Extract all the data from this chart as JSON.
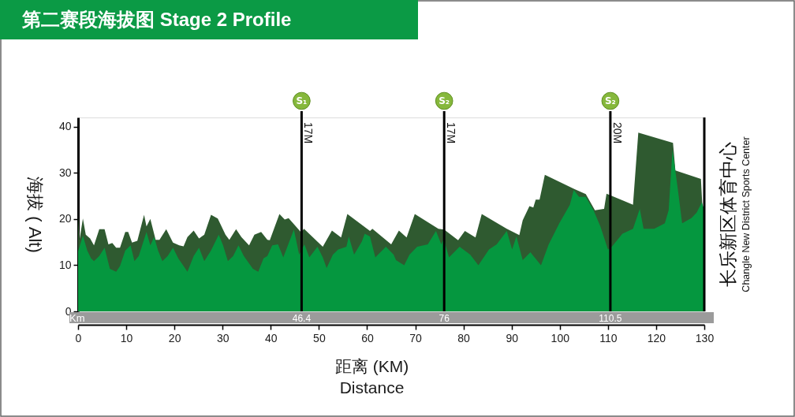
{
  "chart_data": {
    "type": "area",
    "title": "第二赛段海拔图 Stage 2 Profile",
    "xlabel": "距离 (KM)\nDistance",
    "ylabel": "海拔 ( Alt)",
    "x2label": "Km",
    "xlim": [
      0,
      130
    ],
    "xticks": [
      0,
      10,
      20,
      30,
      40,
      50,
      60,
      70,
      80,
      90,
      100,
      110,
      120,
      130
    ],
    "ylim": [
      0,
      42
    ],
    "yticks": [
      0,
      10,
      20,
      30,
      40
    ],
    "x2lim": [
      0,
      130
    ],
    "x2ticks": [
      46.4,
      76,
      110.5
    ],
    "series": [
      {
        "color": "#2f5a30",
        "x": [
          0,
          0.3,
          1.0,
          1.6,
          2.5,
          3.3,
          4.4,
          5.5,
          6.3,
          7.1,
          7.9,
          8.7,
          9.8,
          10.4,
          11.2,
          12.3,
          13.7,
          14.2,
          15.0,
          16.1,
          16.9,
          18.3,
          19.7,
          21.0,
          21.9,
          22.7,
          24.0,
          25.1,
          26.2,
          27.6,
          29.0,
          30.6,
          31.4,
          32.8,
          33.9,
          35.5,
          36.6,
          38.0,
          39.3,
          39.8,
          41.8,
          42.9,
          43.7,
          46.3,
          46.9,
          50.8,
          52.7,
          54.6,
          55.9,
          60.6,
          61.1,
          65.0,
          66.6,
          68.2,
          69.9,
          74.8,
          76.0,
          78.9,
          80.3,
          82.5,
          83.8,
          89.0,
          91.6,
          92.3,
          93.7,
          94.5,
          95.0,
          95.8,
          96.9,
          103.0,
          105.4,
          107.3,
          109.2,
          109.7,
          115.2,
          116.3,
          123.5,
          124.0,
          129.3,
          129.6,
          130
        ],
        "values": [
          21,
          15.5,
          20.1,
          16.6,
          15.8,
          14.3,
          17.8,
          17.8,
          14.5,
          14.8,
          13.8,
          13.8,
          17.2,
          17.2,
          14.9,
          15.3,
          20.9,
          18.4,
          20.0,
          15.5,
          15.5,
          17.8,
          14.9,
          14.3,
          14.1,
          16.1,
          17.5,
          15.8,
          16.6,
          20.9,
          20.1,
          16.6,
          15.5,
          17.8,
          16.1,
          14.3,
          16.6,
          17.2,
          15.5,
          15.4,
          21.1,
          19.9,
          20.2,
          17.1,
          17.9,
          14.0,
          17.5,
          16.0,
          21.1,
          17.4,
          17.9,
          14.5,
          17.5,
          16.0,
          21.1,
          17.9,
          17.7,
          15.4,
          17.4,
          16.0,
          21.1,
          17.9,
          16.5,
          19.7,
          22.8,
          22.5,
          24.2,
          24.2,
          29.6,
          26.5,
          25.4,
          21.9,
          22.2,
          25.5,
          23.1,
          38.7,
          36.5,
          30.5,
          28.7,
          22.8,
          22.4
        ]
      },
      {
        "color": "#05973f",
        "x": [
          0,
          1.0,
          1.9,
          2.7,
          3.3,
          4.4,
          5.5,
          6.6,
          7.9,
          8.7,
          9.8,
          10.9,
          11.7,
          12.6,
          14.2,
          15.0,
          15.8,
          16.6,
          17.5,
          18.6,
          19.7,
          20.8,
          21.9,
          22.7,
          24.0,
          25.1,
          26.2,
          27.6,
          29.2,
          30.1,
          31.1,
          32.2,
          33.3,
          34.4,
          36.3,
          37.4,
          38.5,
          39.3,
          40.3,
          41.5,
          42.6,
          44.8,
          45.9,
          47.0,
          48.0,
          49.7,
          50.8,
          51.6,
          52.9,
          54.0,
          55.7,
          56.2,
          57.3,
          58.9,
          59.5,
          60.6,
          61.7,
          63.9,
          65.5,
          66.0,
          67.7,
          68.8,
          70.4,
          72.6,
          74.3,
          75.4,
          75.9,
          77.0,
          79.2,
          81.4,
          83.1,
          84.2,
          85.3,
          86.9,
          89.0,
          90.1,
          91.0,
          92.3,
          93.9,
          96.1,
          97.7,
          99.9,
          102.1,
          102.9,
          104.0,
          105.4,
          107.0,
          108.4,
          110.0,
          110.8,
          113.0,
          115.2,
          116.6,
          117.4,
          119.6,
          121.8,
          122.6,
          123.4,
          124.5,
          125.4,
          127.3,
          128.4,
          129.5,
          130
        ],
        "values": [
          13,
          16.4,
          13.2,
          11.5,
          10.9,
          12.0,
          13.8,
          9.2,
          8.6,
          9.8,
          13.2,
          14.3,
          10.9,
          12.0,
          17.2,
          14.3,
          16.1,
          13.2,
          10.9,
          12.0,
          13.8,
          11.5,
          9.8,
          8.6,
          12.0,
          13.8,
          10.9,
          13.2,
          16.6,
          14.3,
          10.9,
          12.0,
          14.3,
          12.0,
          9.2,
          8.6,
          11.5,
          12.0,
          14.3,
          14.5,
          11.7,
          17.7,
          12.3,
          14.5,
          11.7,
          14.0,
          11.7,
          9.4,
          12.3,
          13.4,
          14.0,
          16.2,
          12.3,
          15.1,
          16.8,
          16.2,
          11.7,
          14.0,
          12.3,
          11.1,
          10.0,
          12.3,
          14.0,
          14.5,
          17.4,
          14.5,
          15.7,
          11.7,
          14.0,
          12.3,
          10.0,
          11.7,
          13.4,
          14.5,
          17.4,
          13.4,
          16.2,
          11.1,
          12.8,
          10.0,
          14.5,
          19.1,
          23.1,
          26.3,
          24.8,
          24.8,
          21.9,
          18.5,
          13.4,
          14.0,
          16.8,
          17.9,
          22.2,
          17.9,
          17.9,
          19.1,
          21.9,
          35.0,
          26.5,
          19.1,
          20.2,
          21.4,
          23.6,
          22.0
        ]
      }
    ],
    "ref_lines": [
      {
        "axis": "x",
        "value": 46.4,
        "label": "17M",
        "color": "#000000"
      },
      {
        "axis": "x",
        "value": 76,
        "label": "17M",
        "color": "#000000"
      },
      {
        "axis": "x",
        "value": 110.5,
        "label": "20M",
        "color": "#000000"
      }
    ],
    "annotations": [
      "S₁",
      "S₂",
      "S₂",
      "长乐新区体育中心",
      "Changle New District Sports Center"
    ],
    "grid": false
  }
}
